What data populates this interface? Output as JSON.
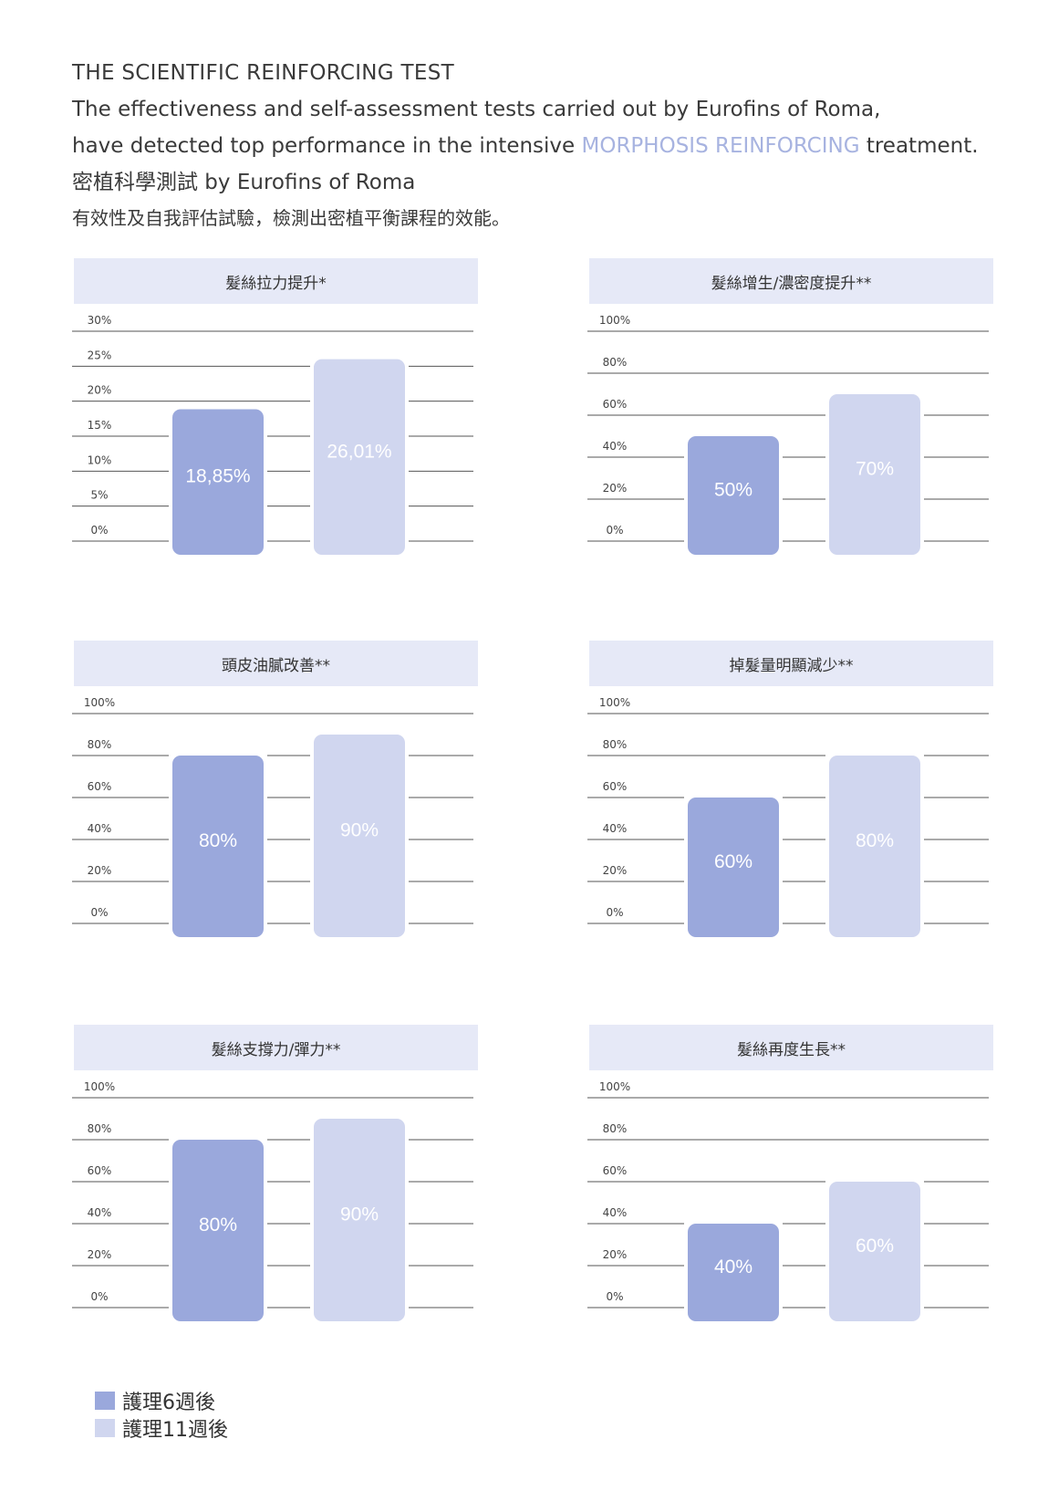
{
  "intro": {
    "title": "THE SCIENTIFIC REINFORCING TEST",
    "line2": "The effectiveness and self-assessment tests carried out by Eurofins of Roma,",
    "line3_pre": "have detected top performance in the intensive ",
    "line3_highlight": "MORPHOSIS REINFORCING",
    "line3_post": " treatment.",
    "line4": "密植科學測試 by Eurofins of Roma",
    "line5": "有效性及自我評估試驗，檢測出密植平衡課程的效能。"
  },
  "colors": {
    "series1": "#9aa8dc",
    "series2": "#d0d6ef",
    "header_bg": "#e6e9f7",
    "highlight": "#a7b3e0"
  },
  "chart_data": [
    {
      "type": "bar",
      "title": "髮絲拉力提升*",
      "categories": [
        "護理6週後",
        "護理11週後"
      ],
      "values": [
        18.85,
        26.01
      ],
      "value_labels": [
        "18,85%",
        "26,01%"
      ],
      "yticks": [
        "0%",
        "5%",
        "10%",
        "15%",
        "20%",
        "25%",
        "30%"
      ],
      "ylim": [
        0,
        30
      ],
      "grid": true
    },
    {
      "type": "bar",
      "title": "髮絲增生/濃密度提升**",
      "categories": [
        "護理6週後",
        "護理11週後"
      ],
      "values": [
        50,
        70
      ],
      "value_labels": [
        "50%",
        "70%"
      ],
      "yticks": [
        "0%",
        "20%",
        "40%",
        "60%",
        "80%",
        "100%"
      ],
      "ylim": [
        0,
        100
      ],
      "grid": true
    },
    {
      "type": "bar",
      "title": "頭皮油膩改善**",
      "categories": [
        "護理6週後",
        "護理11週後"
      ],
      "values": [
        80,
        90
      ],
      "value_labels": [
        "80%",
        "90%"
      ],
      "yticks": [
        "0%",
        "20%",
        "40%",
        "60%",
        "80%",
        "100%"
      ],
      "ylim": [
        0,
        100
      ],
      "grid": true
    },
    {
      "type": "bar",
      "title": "掉髮量明顯減少**",
      "categories": [
        "護理6週後",
        "護理11週後"
      ],
      "values": [
        60,
        80
      ],
      "value_labels": [
        "60%",
        "80%"
      ],
      "yticks": [
        "0%",
        "20%",
        "40%",
        "60%",
        "80%",
        "100%"
      ],
      "ylim": [
        0,
        100
      ],
      "grid": true
    },
    {
      "type": "bar",
      "title": "髮絲支撐力/彈力**",
      "categories": [
        "護理6週後",
        "護理11週後"
      ],
      "values": [
        80,
        90
      ],
      "value_labels": [
        "80%",
        "90%"
      ],
      "yticks": [
        "0%",
        "20%",
        "40%",
        "60%",
        "80%",
        "100%"
      ],
      "ylim": [
        0,
        100
      ],
      "grid": true
    },
    {
      "type": "bar",
      "title": "髮絲再度生長**",
      "categories": [
        "護理6週後",
        "護理11週後"
      ],
      "values": [
        40,
        60
      ],
      "value_labels": [
        "40%",
        "60%"
      ],
      "yticks": [
        "0%",
        "20%",
        "40%",
        "60%",
        "80%",
        "100%"
      ],
      "ylim": [
        0,
        100
      ],
      "grid": true
    }
  ],
  "legend": {
    "position": "bottom-left",
    "items": [
      {
        "label": "護理6週後",
        "color": "#9aa8dc"
      },
      {
        "label": "護理11週後",
        "color": "#d0d6ef"
      }
    ]
  }
}
